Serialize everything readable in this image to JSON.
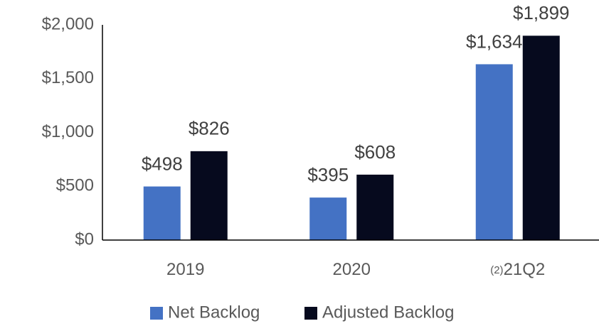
{
  "chart_data": {
    "type": "bar",
    "categories": [
      "2019",
      "2020",
      "21Q2"
    ],
    "category_notes": {
      "2": "(2)"
    },
    "series": [
      {
        "name": "Net Backlog",
        "color": "#4472c4",
        "values": [
          498,
          395,
          1634
        ],
        "value_labels": [
          "$498",
          "$395",
          "$1,634"
        ]
      },
      {
        "name": "Adjusted Backlog",
        "color": "#060a1e",
        "values": [
          826,
          608,
          1899
        ],
        "value_labels": [
          "$826",
          "$608",
          "$1,899"
        ]
      }
    ],
    "ylim": [
      0,
      2000
    ],
    "yticks": [
      {
        "value": 0,
        "label": "$0"
      },
      {
        "value": 500,
        "label": "$500"
      },
      {
        "value": 1000,
        "label": "$1,000"
      },
      {
        "value": 1500,
        "label": "$1,500"
      },
      {
        "value": 2000,
        "label": "$2,000"
      }
    ],
    "grid": false,
    "legend": "bottom"
  }
}
